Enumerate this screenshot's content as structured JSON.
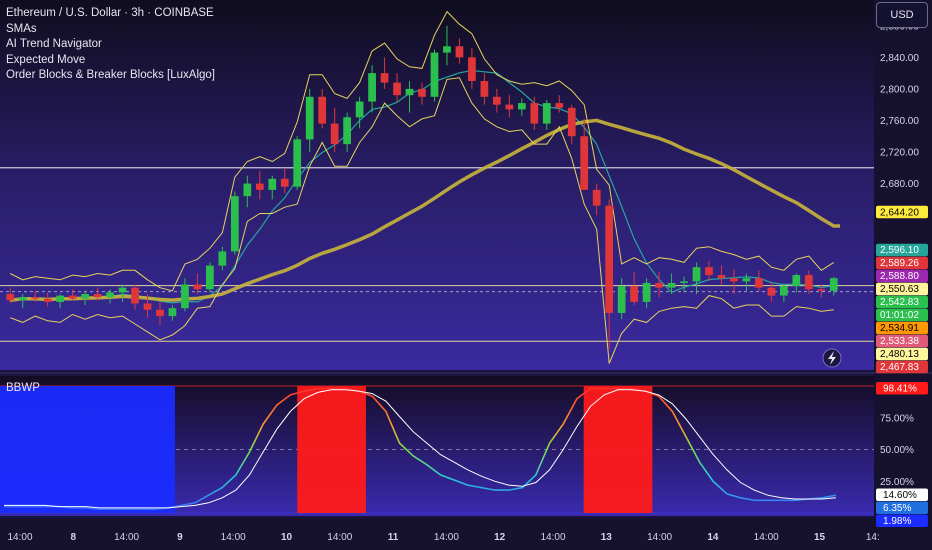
{
  "legend": {
    "title": "Ethereum / U.S. Dollar · 3h · COINBASE",
    "indicators": [
      "SMAs",
      "AI Trend Navigator",
      "Expected Move",
      "Order Blocks & Breaker Blocks [LuxAlgo]"
    ]
  },
  "currency_button": "USD",
  "sub_indicator": "BBWP",
  "colors": {
    "bull": "#2bbf4e",
    "bear": "#e0363a",
    "sma_long": "#c9b53a",
    "trend": "#26a69a",
    "bbwp_high": "#ff1a1a",
    "bbwp_low": "#1a2cff"
  },
  "chart_data": [
    {
      "type": "candlestick",
      "title": "Ethereum / U.S. Dollar · 3h · COINBASE",
      "ylim": [
        2450,
        2900
      ],
      "y_ticks": [
        2680,
        2720,
        2760,
        2800,
        2840,
        2880
      ],
      "y_tick_labels": [
        "2,680.00",
        "2,720.00",
        "2,760.00",
        "2,800.00",
        "2,840.00",
        "2,880.00"
      ],
      "x_tick_labels": [
        "14:00",
        "8",
        "14:00",
        "9",
        "14:00",
        "10",
        "14:00",
        "11",
        "14:00",
        "12",
        "14:00",
        "13",
        "14:00",
        "14",
        "14:00",
        "15",
        "14:"
      ],
      "candles": [
        [
          2540,
          2548,
          2528,
          2532
        ],
        [
          2532,
          2540,
          2522,
          2536
        ],
        [
          2536,
          2544,
          2530,
          2534
        ],
        [
          2534,
          2542,
          2524,
          2530
        ],
        [
          2530,
          2540,
          2522,
          2538
        ],
        [
          2538,
          2546,
          2532,
          2534
        ],
        [
          2534,
          2544,
          2526,
          2540
        ],
        [
          2540,
          2548,
          2532,
          2536
        ],
        [
          2536,
          2546,
          2528,
          2542
        ],
        [
          2542,
          2552,
          2530,
          2548
        ],
        [
          2548,
          2552,
          2520,
          2528
        ],
        [
          2528,
          2540,
          2510,
          2520
        ],
        [
          2520,
          2530,
          2500,
          2512
        ],
        [
          2512,
          2526,
          2506,
          2522
        ],
        [
          2522,
          2560,
          2518,
          2552
        ],
        [
          2552,
          2566,
          2540,
          2546
        ],
        [
          2546,
          2580,
          2542,
          2576
        ],
        [
          2576,
          2600,
          2570,
          2594
        ],
        [
          2594,
          2670,
          2590,
          2664
        ],
        [
          2664,
          2690,
          2650,
          2680
        ],
        [
          2680,
          2696,
          2660,
          2672
        ],
        [
          2672,
          2690,
          2660,
          2686
        ],
        [
          2686,
          2700,
          2668,
          2676
        ],
        [
          2676,
          2740,
          2672,
          2736
        ],
        [
          2736,
          2800,
          2720,
          2790
        ],
        [
          2790,
          2800,
          2750,
          2756
        ],
        [
          2756,
          2776,
          2720,
          2730
        ],
        [
          2730,
          2770,
          2720,
          2764
        ],
        [
          2764,
          2790,
          2750,
          2784
        ],
        [
          2784,
          2830,
          2770,
          2820
        ],
        [
          2820,
          2840,
          2800,
          2808
        ],
        [
          2808,
          2820,
          2784,
          2792
        ],
        [
          2792,
          2810,
          2770,
          2800
        ],
        [
          2800,
          2808,
          2780,
          2790
        ],
        [
          2790,
          2850,
          2784,
          2846
        ],
        [
          2846,
          2880,
          2830,
          2854
        ],
        [
          2854,
          2864,
          2832,
          2840
        ],
        [
          2840,
          2852,
          2800,
          2810
        ],
        [
          2810,
          2820,
          2780,
          2790
        ],
        [
          2790,
          2800,
          2770,
          2780
        ],
        [
          2780,
          2792,
          2764,
          2774
        ],
        [
          2774,
          2788,
          2766,
          2782
        ],
        [
          2782,
          2790,
          2748,
          2756
        ],
        [
          2756,
          2786,
          2748,
          2782
        ],
        [
          2782,
          2792,
          2770,
          2776
        ],
        [
          2776,
          2780,
          2730,
          2740
        ],
        [
          2740,
          2762,
          2672,
          2672
        ],
        [
          2672,
          2680,
          2640,
          2652
        ],
        [
          2652,
          2660,
          2470,
          2516
        ],
        [
          2516,
          2560,
          2508,
          2550
        ],
        [
          2550,
          2568,
          2526,
          2530
        ],
        [
          2530,
          2560,
          2522,
          2554
        ],
        [
          2554,
          2568,
          2536,
          2548
        ],
        [
          2548,
          2566,
          2540,
          2554
        ],
        [
          2554,
          2562,
          2542,
          2556
        ],
        [
          2556,
          2580,
          2540,
          2574
        ],
        [
          2574,
          2582,
          2556,
          2564
        ],
        [
          2564,
          2576,
          2552,
          2560
        ],
        [
          2560,
          2572,
          2540,
          2556
        ],
        [
          2556,
          2566,
          2544,
          2560
        ],
        [
          2560,
          2570,
          2544,
          2548
        ],
        [
          2548,
          2556,
          2530,
          2538
        ],
        [
          2538,
          2552,
          2530,
          2550
        ],
        [
          2550,
          2566,
          2542,
          2564
        ],
        [
          2564,
          2570,
          2540,
          2546
        ],
        [
          2546,
          2552,
          2536,
          2544
        ],
        [
          2544,
          2562,
          2538,
          2560
        ]
      ],
      "price_tags": [
        {
          "label": "2,644.20",
          "value": 2644.2,
          "bg": "#ffeb3b",
          "fg": "#000000"
        },
        {
          "label": "2,596.10",
          "value": 2596.1,
          "bg": "#26a69a",
          "fg": "#ffffff"
        },
        {
          "label": "2,589.26",
          "value": 2589.26,
          "bg": "#e0363a",
          "fg": "#ffffff"
        },
        {
          "label": "2,588.80",
          "value": 2588.8,
          "bg": "#9c27b0",
          "fg": "#ffffff"
        },
        {
          "label": "2,550.63",
          "value": 2550.63,
          "bg": "#fff59d",
          "fg": "#000000"
        },
        {
          "label": "2,542.83",
          "value": 2542.83,
          "bg": "#2bbf4e",
          "fg": "#ffffff"
        },
        {
          "label": "01:01:02",
          "value": 2542.83,
          "bg": "#2bbf4e",
          "fg": "#ffffff"
        },
        {
          "label": "2,534.91",
          "value": 2534.91,
          "bg": "#ff9800",
          "fg": "#000000"
        },
        {
          "label": "2,533.38",
          "value": 2533.38,
          "bg": "#e05a7a",
          "fg": "#ffffff"
        },
        {
          "label": "2,480.13",
          "value": 2480.13,
          "bg": "#fff59d",
          "fg": "#000000"
        },
        {
          "label": "2,467.83",
          "value": 2467.83,
          "bg": "#e0363a",
          "fg": "#ffffff"
        }
      ]
    },
    {
      "type": "line",
      "title": "BBWP",
      "ylim": [
        0,
        100
      ],
      "y_tick_labels": [
        "75.00%",
        "50.00%",
        "25.00%"
      ],
      "y_ticks": [
        75,
        50,
        25
      ],
      "bbwp": [
        5,
        5,
        5,
        5,
        5,
        4,
        4,
        3,
        3,
        3,
        3,
        3,
        4,
        6,
        8,
        14,
        20,
        30,
        48,
        70,
        85,
        93,
        96,
        98,
        98,
        98,
        96,
        92,
        80,
        55,
        45,
        38,
        30,
        26,
        22,
        20,
        18,
        18,
        20,
        30,
        55,
        70,
        90,
        98,
        98,
        98,
        98,
        96,
        92,
        80,
        60,
        40,
        25,
        15,
        12,
        10,
        10,
        10,
        10,
        11,
        12,
        14
      ],
      "signal": [
        6,
        6,
        6,
        6,
        5,
        5,
        5,
        4,
        4,
        4,
        4,
        4,
        4,
        5,
        6,
        8,
        12,
        18,
        30,
        48,
        66,
        80,
        90,
        95,
        97,
        97,
        96,
        94,
        88,
        76,
        64,
        55,
        46,
        40,
        34,
        29,
        25,
        22,
        21,
        24,
        34,
        50,
        68,
        84,
        93,
        97,
        97,
        96,
        93,
        86,
        74,
        60,
        46,
        34,
        24,
        18,
        14,
        12,
        11,
        11,
        11,
        12
      ],
      "value_tags": [
        {
          "label": "98.41%",
          "value": 98.41,
          "bg": "#ff1a1a",
          "fg": "#ffffff"
        },
        {
          "label": "14.60%",
          "value": 14.6,
          "bg": "#ffffff",
          "fg": "#000000"
        },
        {
          "label": "6.35%",
          "value": 6.35,
          "bg": "#1f6fe0",
          "fg": "#ffffff"
        },
        {
          "label": "1.98%",
          "value": 1.98,
          "bg": "#1a2cff",
          "fg": "#ffffff"
        }
      ]
    }
  ]
}
